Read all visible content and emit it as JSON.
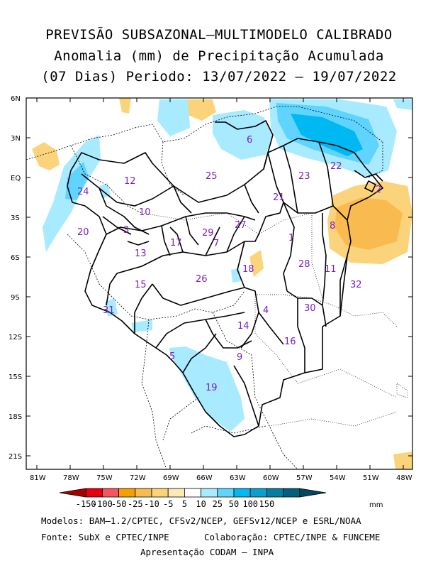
{
  "header": {
    "line1": "PREVISÃO SUBSAZONAL—MULTIMODELO CALIBRADO",
    "line2": "Anomalia (mm) de Precipitação Acumulada",
    "line3": "(07 Dias) Periodo: 13/07/2022 — 19/07/2022"
  },
  "axes": {
    "lat_labels": [
      "6N",
      "3N",
      "EQ",
      "3S",
      "6S",
      "9S",
      "12S",
      "15S",
      "18S",
      "21S"
    ],
    "lon_labels": [
      "81W",
      "78W",
      "75W",
      "72W",
      "69W",
      "66W",
      "63W",
      "60W",
      "57W",
      "54W",
      "51W",
      "48W"
    ]
  },
  "basins": [
    {
      "id": "1"
    },
    {
      "id": "2"
    },
    {
      "id": "3"
    },
    {
      "id": "4"
    },
    {
      "id": "5"
    },
    {
      "id": "6"
    },
    {
      "id": "7"
    },
    {
      "id": "8"
    },
    {
      "id": "9"
    },
    {
      "id": "10"
    },
    {
      "id": "11"
    },
    {
      "id": "12"
    },
    {
      "id": "13"
    },
    {
      "id": "14"
    },
    {
      "id": "15"
    },
    {
      "id": "16"
    },
    {
      "id": "17"
    },
    {
      "id": "18"
    },
    {
      "id": "19"
    },
    {
      "id": "20"
    },
    {
      "id": "21"
    },
    {
      "id": "22"
    },
    {
      "id": "23"
    },
    {
      "id": "24"
    },
    {
      "id": "25"
    },
    {
      "id": "26"
    },
    {
      "id": "27"
    },
    {
      "id": "28"
    },
    {
      "id": "29"
    },
    {
      "id": "30"
    },
    {
      "id": "31"
    },
    {
      "id": "32"
    }
  ],
  "colorbar": {
    "labels": [
      "-150",
      "-100",
      "-50",
      "-25",
      "-10",
      "-5",
      "5",
      "10",
      "25",
      "50",
      "100",
      "150"
    ],
    "unit": "mm",
    "colors": [
      "#a50000",
      "#e4000f",
      "#f4555e",
      "#f79f00",
      "#f9bb50",
      "#fbd37a",
      "#fde9b7",
      "#ffffff",
      "#a8eaff",
      "#5ed4ff",
      "#00b8f2",
      "#0a9fd0",
      "#067da3",
      "#045e7c",
      "#02475e"
    ]
  },
  "footer": {
    "models": "Modelos: BAM—1.2/CPTEC, CFSv2/NCEP, GEFSv12/NCEP e ESRL/NOAA",
    "source": "Fonte: SubX e CPTEC/INPE",
    "collab": "Colaboração: CPTEC/INPE & FUNCEME",
    "presentation": "Apresentação CODAM — INPA"
  }
}
